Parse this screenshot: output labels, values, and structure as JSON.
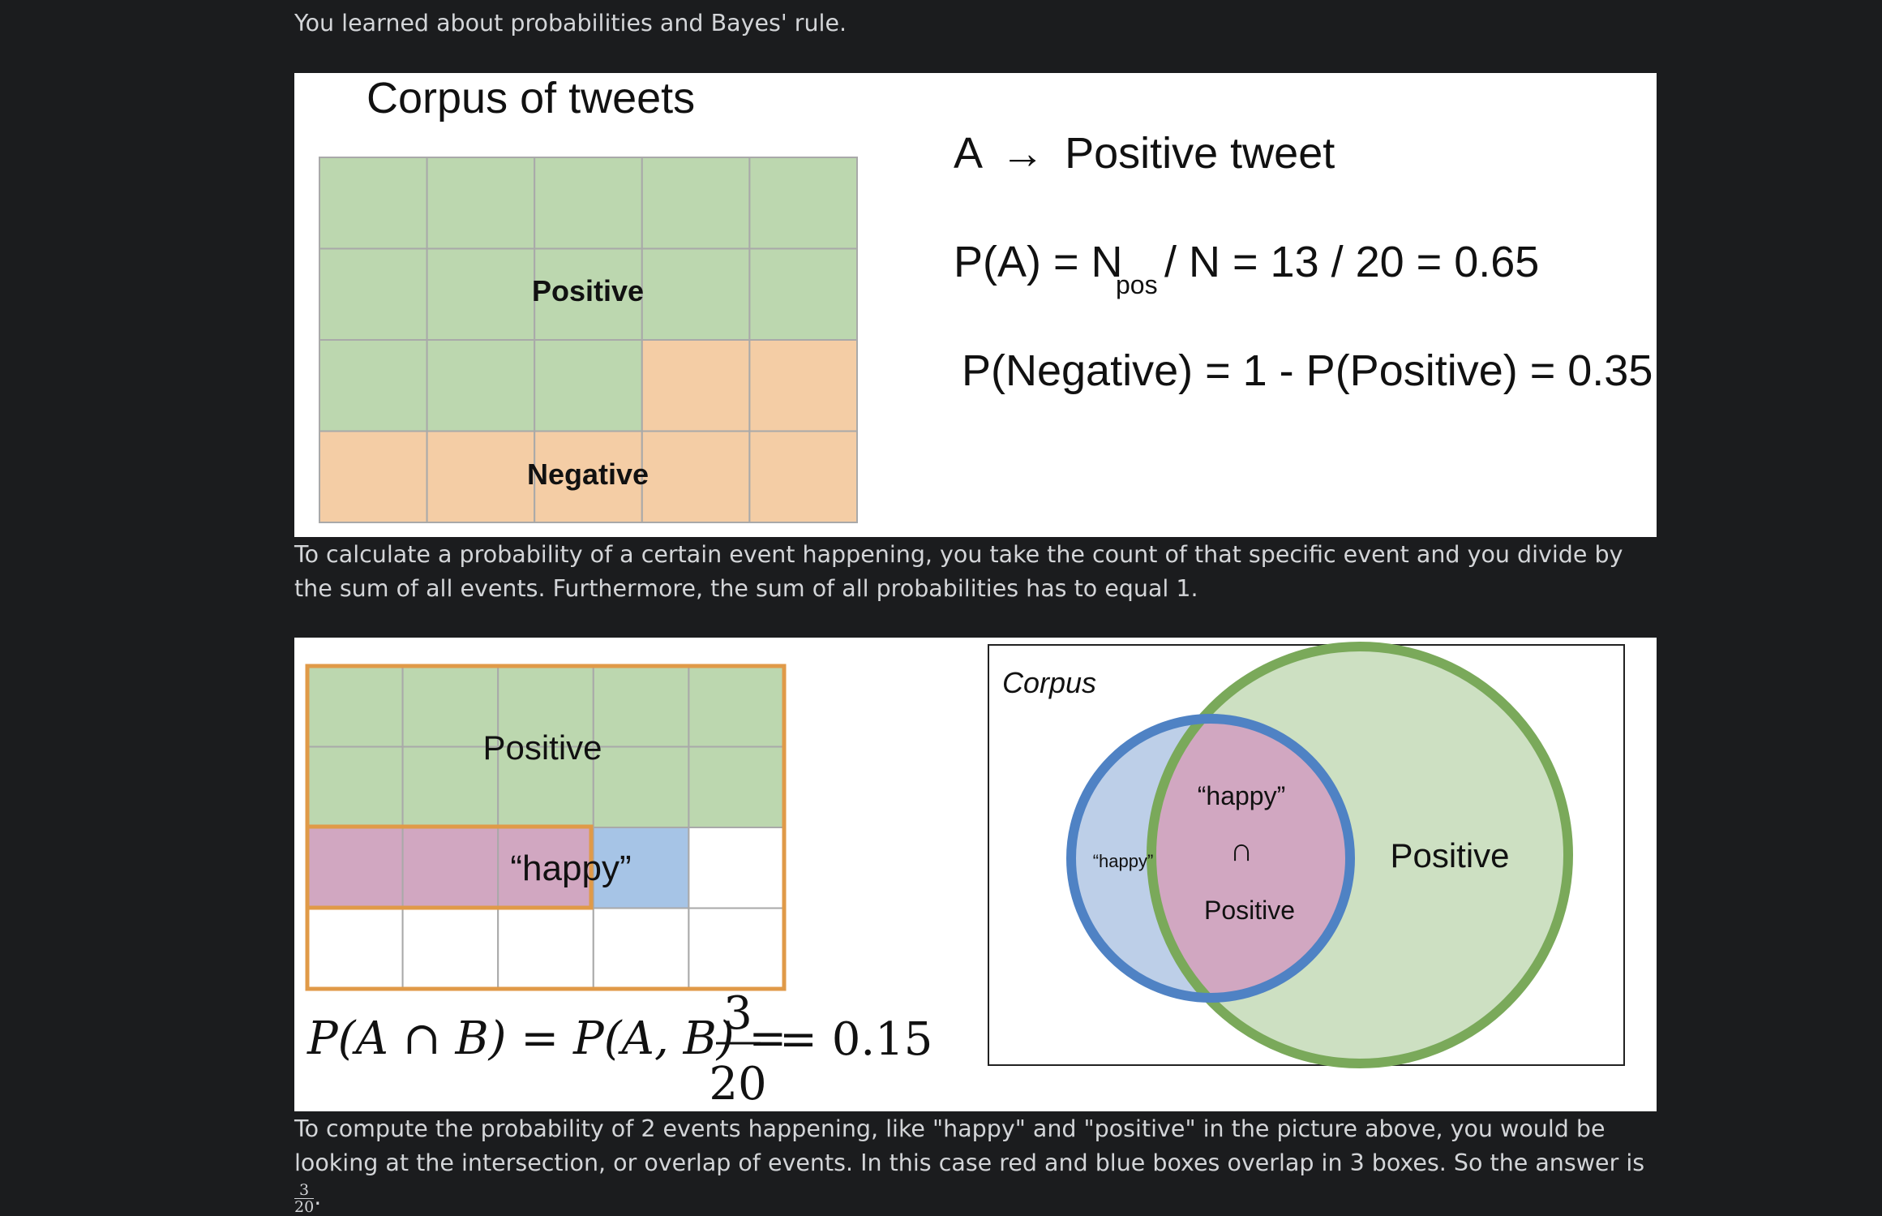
{
  "intro_text": "You learned about probabilities and Bayes' rule.",
  "calc_text": "To calculate a probability of a certain event happening, you take the count of that specific event and you divide by the sum of all events. Furthermore, the sum of all probabilities has to equal 1.",
  "joint_text_before": "To compute the probability of 2 events happening, like \"happy\" and \"positive\" in the picture above, you would be looking at the intersection, or overlap of events. In this case red and blue boxes overlap in 3 boxes. So the answer is ",
  "joint_frac_num": "3",
  "joint_frac_den": "20",
  "joint_text_after": ".",
  "slide1": {
    "title": "Corpus of tweets",
    "grid_label_positive": "Positive",
    "grid_label_negative": "Negative",
    "line_a_lhs": "A",
    "line_a_arrow": "→",
    "line_a_rhs": "Positive tweet",
    "pa_prefix": "P(A) = N",
    "pa_sub": "pos",
    "pa_suffix": "/ N = 13 / 20 = 0.65",
    "pneg": "P(Negative) = 1 - P(Positive) = 0.35",
    "colors": {
      "positive": "#bcd7af",
      "negative": "#f4cda5",
      "grid": "#a9a9a9"
    }
  },
  "slide2": {
    "grid_label_positive": "Positive",
    "grid_label_happy": "“happy”",
    "formula_lhs": "P(A ∩ B) = P(A, B) =",
    "formula_num": "3",
    "formula_den": "20",
    "formula_rhs": "= 0.15",
    "venn_corpus": "Corpus",
    "venn_happy_small": "“happy”",
    "venn_happy": "“happy”",
    "venn_cap": "∩",
    "venn_positive_inner": "Positive",
    "venn_positive": "Positive",
    "colors": {
      "positive": "#bcd7af",
      "happy": "#a6c4e6",
      "overlap": "#d1a7c1",
      "orange": "#e09a48",
      "blue_ring": "#4f82c4",
      "green_ring": "#7aa95a"
    }
  }
}
